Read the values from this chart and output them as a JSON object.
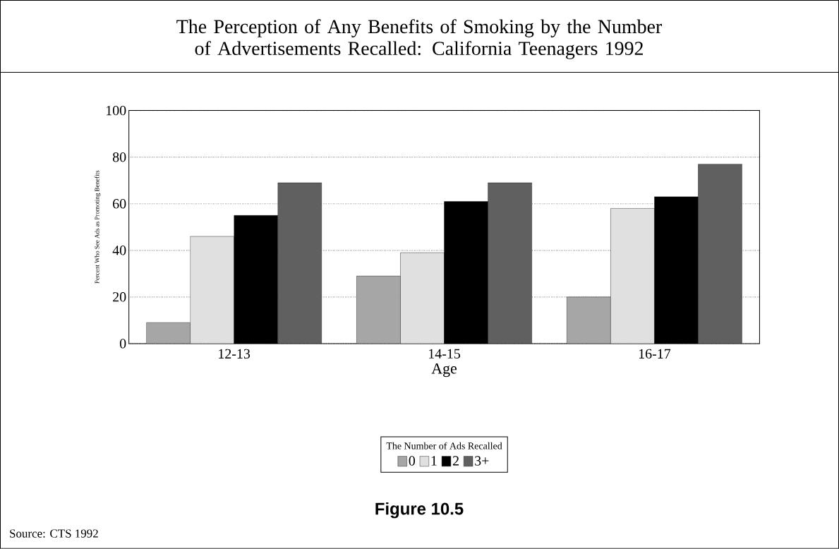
{
  "chart_data": {
    "type": "bar",
    "title": "The Perception of Any Benefits of Smoking by the Number of Advertisements Recalled: California Teenagers 1992",
    "xlabel": "Age",
    "ylabel": "Percent Who See Ads as Promoting Benefits",
    "legend_title": "The Number of Ads Recalled",
    "categories": [
      "12-13",
      "14-15",
      "16-17"
    ],
    "series": [
      {
        "name": "0",
        "color": "#a6a6a6",
        "values": [
          9,
          29,
          20
        ]
      },
      {
        "name": "1",
        "color": "#e0e0e0",
        "values": [
          46,
          39,
          58
        ]
      },
      {
        "name": "2",
        "color": "#000000",
        "values": [
          55,
          61,
          63
        ]
      },
      {
        "name": "3+",
        "color": "#606060",
        "values": [
          69,
          69,
          77
        ]
      }
    ],
    "ylim": [
      0,
      100
    ],
    "yticks": [
      0,
      20,
      40,
      60,
      80,
      100
    ],
    "grid": "y",
    "legend": "bottom",
    "annotations": [
      "Figure 10.5",
      "Source: CTS 1992"
    ]
  }
}
